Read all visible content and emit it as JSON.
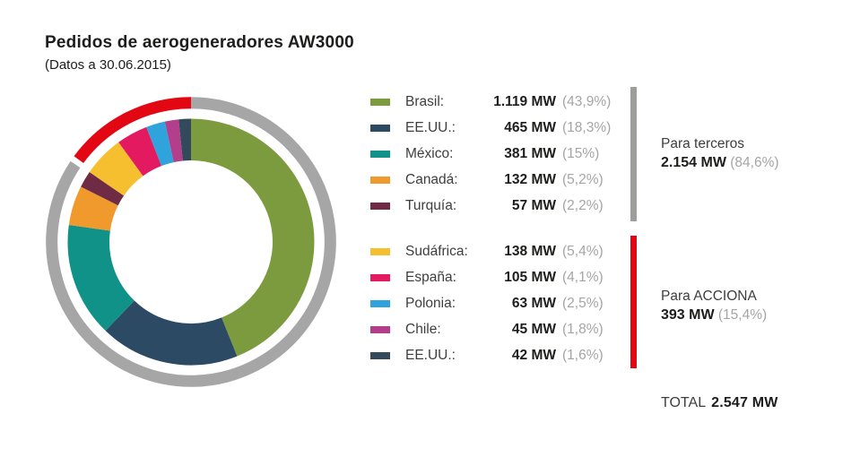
{
  "header": {
    "title": "Pedidos de aerogeneradores AW3000",
    "subtitle": "(Datos a 30.06.2015)"
  },
  "chart_data": {
    "type": "pie",
    "subtype": "donut-with-outer-ring",
    "title": "Pedidos de aerogeneradores AW3000",
    "subtitle": "(Datos a 30.06.2015)",
    "unit": "MW",
    "start_angle_deg": 0,
    "direction": "clockwise",
    "ring_colors": {
      "terceros": "#A6A6A6",
      "acciona": "#E30613"
    },
    "groups": [
      {
        "name": "Para terceros",
        "value": "2.154 MW",
        "pct": "(84,6%)",
        "pct_value": 84.6,
        "bar_color": "#9D9D9C",
        "segments": [
          {
            "label": "Brasil:",
            "value": "1.119 MW",
            "pct": "(43,9%)",
            "pct_value": 43.9,
            "mw": 1119,
            "color": "#7C9B3F"
          },
          {
            "label": "EE.UU.:",
            "value": "465 MW",
            "pct": "(18,3%)",
            "pct_value": 18.3,
            "mw": 465,
            "color": "#2C4A63"
          },
          {
            "label": "México:",
            "value": "381 MW",
            "pct": "(15%)",
            "pct_value": 15.0,
            "mw": 381,
            "color": "#119288"
          },
          {
            "label": "Canadá:",
            "value": "132 MW",
            "pct": "(5,2%)",
            "pct_value": 5.2,
            "mw": 132,
            "color": "#F0992C"
          },
          {
            "label": "Turquía:",
            "value": "57 MW",
            "pct": "(2,2%)",
            "pct_value": 2.2,
            "mw": 57,
            "color": "#6F2B44"
          }
        ]
      },
      {
        "name": "Para ACCIONA",
        "value": "393 MW",
        "pct": "(15,4%)",
        "pct_value": 15.4,
        "bar_color": "#E30613",
        "segments": [
          {
            "label": "Sudáfrica:",
            "value": "138 MW",
            "pct": "(5,4%)",
            "pct_value": 5.4,
            "mw": 138,
            "color": "#F5BF2F"
          },
          {
            "label": "España:",
            "value": "105 MW",
            "pct": "(4,1%)",
            "pct_value": 4.1,
            "mw": 105,
            "color": "#E31A5F"
          },
          {
            "label": "Polonia:",
            "value": "63 MW",
            "pct": "(2,5%)",
            "pct_value": 2.5,
            "mw": 63,
            "color": "#2FA3DC"
          },
          {
            "label": "Chile:",
            "value": "45 MW",
            "pct": "(1,8%)",
            "pct_value": 1.8,
            "mw": 45,
            "color": "#B23E8C"
          },
          {
            "label": "EE.UU.:",
            "value": "42 MW",
            "pct": "(1,6%)",
            "pct_value": 1.6,
            "mw": 42,
            "color": "#33495C"
          }
        ]
      }
    ],
    "total": {
      "label": "TOTAL",
      "value": "2.547 MW",
      "mw": 2547
    }
  }
}
